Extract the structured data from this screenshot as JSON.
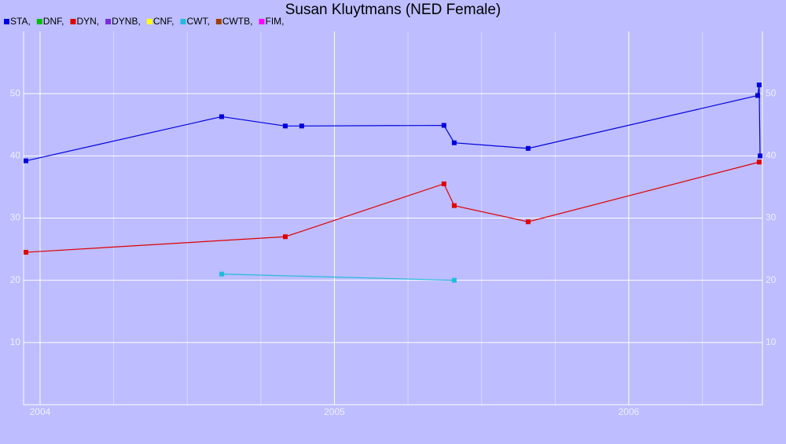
{
  "chart_data": {
    "type": "line",
    "title": "Susan Kluytmans (NED Female)",
    "series": [
      {
        "name": "STA,",
        "color": "#0000dd",
        "x": [
          2003.952,
          2004.617,
          2004.833,
          2004.889,
          2005.372,
          2005.407,
          2005.658,
          2006.438,
          2006.443,
          2006.446
        ],
        "values": [
          39.2,
          46.3,
          44.8,
          44.8,
          44.9,
          42.1,
          41.2,
          49.7,
          51.4,
          40.0
        ]
      },
      {
        "name": "DNF,",
        "color": "#00c000",
        "x": [],
        "values": []
      },
      {
        "name": "DYN,",
        "color": "#e00000",
        "x": [
          2003.952,
          2004.833,
          2005.372,
          2005.407,
          2005.658,
          2006.443
        ],
        "values": [
          24.5,
          27.0,
          35.5,
          32.0,
          29.4,
          39.0
        ]
      },
      {
        "name": "DYNB,",
        "color": "#7a2be0",
        "x": [],
        "values": []
      },
      {
        "name": "CNF,",
        "color": "#ffff00",
        "x": [],
        "values": []
      },
      {
        "name": "CWT,",
        "color": "#22bbdd",
        "x": [
          2004.617,
          2005.407
        ],
        "values": [
          21.0,
          20.0
        ]
      },
      {
        "name": "CWTB,",
        "color": "#a04000",
        "x": [],
        "values": []
      },
      {
        "name": "FIM,",
        "color": "#ff00ff",
        "x": [],
        "values": []
      }
    ],
    "xlim": [
      2003.944,
      2006.454
    ],
    "xticks": [
      2004,
      2005,
      2006
    ],
    "ylim": [
      0,
      60
    ],
    "yticks": [
      10,
      20,
      30,
      40,
      50
    ],
    "grid": true
  }
}
